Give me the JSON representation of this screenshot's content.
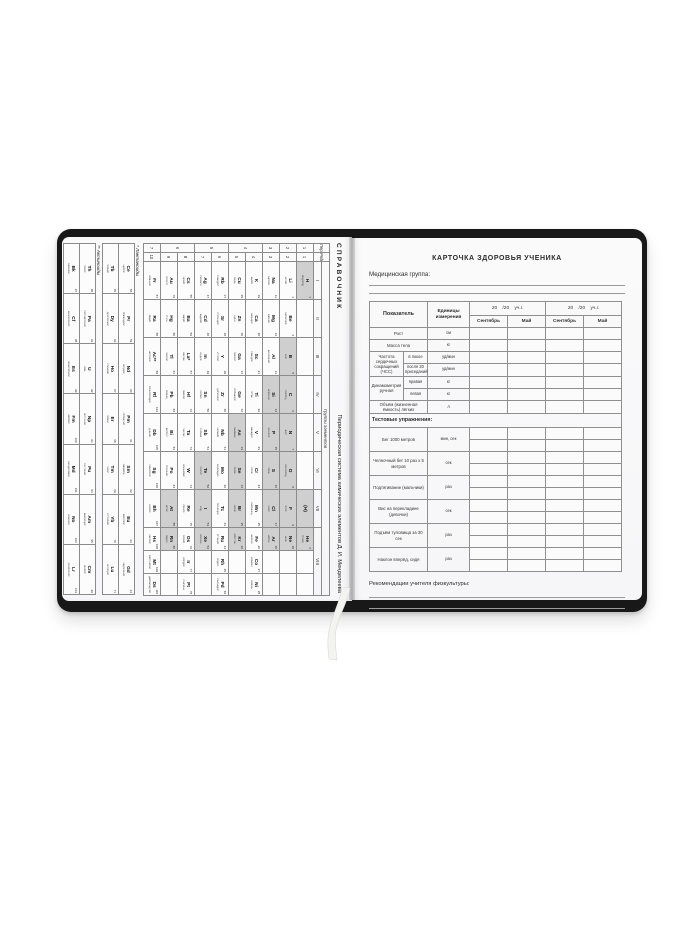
{
  "left_page": {
    "header": "СПРАВОЧНИК",
    "title": "Периодическая система химических элементов Д. И. Менделеева",
    "groups_label": "Группы элементов",
    "periods_label": "Периоды",
    "rows_label": "Ряды",
    "group_headers": [
      "I",
      "II",
      "III",
      "IV",
      "V",
      "VI",
      "VII",
      "VIII"
    ],
    "periods": [
      [
        "1",
        1
      ],
      [
        "2",
        1
      ],
      [
        "3",
        1
      ],
      [
        "4",
        2
      ],
      [
        "5",
        2
      ],
      [
        "6",
        2
      ],
      [
        "7",
        1
      ]
    ],
    "ryady": [
      {
        "r": "1",
        "g": [
          [
            1,
            "H",
            "Водород",
            1
          ],
          null,
          null,
          null,
          null,
          null,
          [
            null,
            "(H)",
            "",
            1
          ]
        ],
        "v8": [
          [
            2,
            "He",
            "Гелий",
            1
          ],
          null,
          null
        ]
      },
      {
        "r": "2",
        "g": [
          [
            3,
            "Li",
            "Литий",
            0
          ],
          [
            4,
            "Be",
            "Бериллий",
            0
          ],
          [
            5,
            "B",
            "Бор",
            1
          ],
          [
            6,
            "C",
            "Углерод",
            1
          ],
          [
            7,
            "N",
            "Азот",
            1
          ],
          [
            8,
            "O",
            "Кислород",
            1
          ],
          [
            9,
            "F",
            "Фтор",
            1
          ]
        ],
        "v8": [
          [
            10,
            "Ne",
            "Неон",
            1
          ],
          null,
          null
        ]
      },
      {
        "r": "3",
        "g": [
          [
            11,
            "Na",
            "Натрий",
            0
          ],
          [
            12,
            "Mg",
            "Магний",
            0
          ],
          [
            13,
            "Al",
            "Алюминий",
            0
          ],
          [
            14,
            "Si",
            "Кремний",
            1
          ],
          [
            15,
            "P",
            "Фосфор",
            1
          ],
          [
            16,
            "S",
            "Сера",
            1
          ],
          [
            17,
            "Cl",
            "Хлор",
            1
          ]
        ],
        "v8": [
          [
            18,
            "Ar",
            "Аргон",
            1
          ],
          null,
          null
        ]
      },
      {
        "r": "4",
        "g": [
          [
            19,
            "K",
            "Калий",
            0
          ],
          [
            20,
            "Ca",
            "Кальций",
            0
          ],
          [
            21,
            "Sc",
            "Скандий",
            0
          ],
          [
            22,
            "Ti",
            "Титан",
            0
          ],
          [
            23,
            "V",
            "Ванадий",
            0
          ],
          [
            24,
            "Cr",
            "Хром",
            0
          ],
          [
            25,
            "Mn",
            "Марганец",
            0
          ]
        ],
        "v8": [
          [
            26,
            "Fe",
            "Железо",
            0
          ],
          [
            27,
            "Co",
            "Кобальт",
            0
          ],
          [
            28,
            "Ni",
            "Никель",
            0
          ]
        ]
      },
      {
        "r": "5",
        "g": [
          [
            29,
            "Cu",
            "Медь",
            0
          ],
          [
            30,
            "Zn",
            "Цинк",
            0
          ],
          [
            31,
            "Ga",
            "Галлий",
            0
          ],
          [
            32,
            "Ge",
            "Германий",
            0
          ],
          [
            33,
            "As",
            "Мышьяк",
            1
          ],
          [
            34,
            "Se",
            "Селен",
            1
          ],
          [
            35,
            "Br",
            "Бром",
            1
          ]
        ],
        "v8": [
          [
            36,
            "Kr",
            "Криптон",
            1
          ],
          null,
          null
        ]
      },
      {
        "r": "6",
        "g": [
          [
            37,
            "Rb",
            "Рубидий",
            0
          ],
          [
            38,
            "Sr",
            "Стронций",
            0
          ],
          [
            39,
            "Y",
            "Иттрий",
            0
          ],
          [
            40,
            "Zr",
            "Цирконий",
            0
          ],
          [
            41,
            "Nb",
            "Ниобий",
            0
          ],
          [
            42,
            "Mo",
            "Молибден",
            0
          ],
          [
            43,
            "Tc",
            "Технеций",
            0
          ]
        ],
        "v8": [
          [
            44,
            "Ru",
            "Рутений",
            0
          ],
          [
            45,
            "Rh",
            "Родий",
            0
          ],
          [
            46,
            "Pd",
            "Палладий",
            0
          ]
        ]
      },
      {
        "r": "7",
        "g": [
          [
            47,
            "Ag",
            "Серебро",
            0
          ],
          [
            48,
            "Cd",
            "Кадмий",
            0
          ],
          [
            49,
            "In",
            "Индий",
            0
          ],
          [
            50,
            "Sn",
            "Олово",
            0
          ],
          [
            51,
            "Sb",
            "Сурьма",
            0
          ],
          [
            52,
            "Te",
            "Теллур",
            1
          ],
          [
            53,
            "I",
            "Иод",
            1
          ]
        ],
        "v8": [
          [
            54,
            "Xe",
            "Ксенон",
            1
          ],
          null,
          null
        ]
      },
      {
        "r": "8",
        "g": [
          [
            55,
            "Cs",
            "Цезий",
            0
          ],
          [
            56,
            "Ba",
            "Барий",
            0
          ],
          [
            57,
            "La*",
            "Лантан",
            0
          ],
          [
            72,
            "Hf",
            "Гафний",
            0
          ],
          [
            73,
            "Ta",
            "Тантал",
            0
          ],
          [
            74,
            "W",
            "Вольфрам",
            0
          ],
          [
            75,
            "Re",
            "Рений",
            0
          ]
        ],
        "v8": [
          [
            76,
            "Os",
            "Осмий",
            0
          ],
          [
            77,
            "Ir",
            "Иридий",
            0
          ],
          [
            78,
            "Pt",
            "Платина",
            0
          ]
        ]
      },
      {
        "r": "9",
        "g": [
          [
            79,
            "Au",
            "Золото",
            0
          ],
          [
            80,
            "Hg",
            "Ртуть",
            0
          ],
          [
            81,
            "Tl",
            "Таллий",
            0
          ],
          [
            82,
            "Pb",
            "Свинец",
            0
          ],
          [
            83,
            "Bi",
            "Висмут",
            0
          ],
          [
            84,
            "Po",
            "Полоний",
            0
          ],
          [
            85,
            "At",
            "Астат",
            1
          ]
        ],
        "v8": [
          [
            86,
            "Rn",
            "Радон",
            1
          ],
          null,
          null
        ]
      },
      {
        "r": "10",
        "g": [
          [
            87,
            "Fr",
            "Франций",
            0
          ],
          [
            88,
            "Ra",
            "Радий",
            0
          ],
          [
            89,
            "Ac**",
            "Актиний",
            0
          ],
          [
            104,
            "Rf",
            "Резерфордий",
            0
          ],
          [
            105,
            "Db",
            "Дубний",
            0
          ],
          [
            106,
            "Sg",
            "Сиборгий",
            0
          ],
          [
            107,
            "Bh",
            "Борий",
            0
          ]
        ],
        "v8": [
          [
            108,
            "Hs",
            "Хассий",
            0
          ],
          [
            109,
            "Mt",
            "Мейтнерий",
            0
          ],
          [
            110,
            "Ds",
            "Дармштадтий",
            0
          ]
        ]
      }
    ],
    "lanthanides_label": "* Лантаноиды",
    "lanthanides": [
      [
        [
          58,
          "Ce",
          "Церий"
        ],
        [
          59,
          "Pr",
          "Празеодим"
        ],
        [
          60,
          "Nd",
          "Неодим"
        ],
        [
          61,
          "Pm",
          "Прометий"
        ],
        [
          62,
          "Sm",
          "Самарий"
        ],
        [
          63,
          "Eu",
          "Европий"
        ],
        [
          64,
          "Gd",
          "Гадолиний"
        ]
      ],
      [
        [
          65,
          "Tb",
          "Тербий"
        ],
        [
          66,
          "Dy",
          "Диспрозий"
        ],
        [
          67,
          "Ho",
          "Гольмий"
        ],
        [
          68,
          "Er",
          "Эрбий"
        ],
        [
          69,
          "Tm",
          "Тулий"
        ],
        [
          70,
          "Yb",
          "Иттербий"
        ],
        [
          71,
          "Lu",
          "Лютеций"
        ]
      ]
    ],
    "actinides_label": "** Актиноиды",
    "actinides": [
      [
        [
          90,
          "Th",
          "Торий"
        ],
        [
          91,
          "Pa",
          "Протактиний"
        ],
        [
          92,
          "U",
          "Уран"
        ],
        [
          93,
          "Np",
          "Нептуний"
        ],
        [
          94,
          "Pu",
          "Плутоний"
        ],
        [
          95,
          "Am",
          "Америций"
        ],
        [
          96,
          "Cm",
          "Кюрий"
        ]
      ],
      [
        [
          97,
          "Bk",
          "Берклий"
        ],
        [
          98,
          "Cf",
          "Калифорний"
        ],
        [
          99,
          "Es",
          "Эйнштейний"
        ],
        [
          100,
          "Fm",
          "Фермий"
        ],
        [
          101,
          "Md",
          "Менделевий"
        ],
        [
          102,
          "No",
          "Нобелий"
        ],
        [
          103,
          "Lr",
          "Лоуренсий"
        ]
      ]
    ]
  },
  "right_page": {
    "title": "КАРТОЧКА ЗДОРОВЬЯ УЧЕНИКА",
    "medical_group_label": "Медицинская группа:",
    "table": {
      "col_indicator": "Показатель",
      "col_units": "Единицы измерения",
      "year_header": "20    /20    уч.г.",
      "col_september": "Сентябрь",
      "col_may": "Май",
      "rows": [
        {
          "t": "simple",
          "label": "Рост",
          "unit": "см"
        },
        {
          "t": "simple",
          "label": "Масса тела",
          "unit": "кг"
        },
        {
          "t": "nested",
          "label": "Частота сердечных сокращений (ЧСС)",
          "subs": [
            {
              "label": "в покое",
              "unit": "уд/мин"
            },
            {
              "label": "после 20 приседаний",
              "unit": "уд/мин"
            }
          ]
        },
        {
          "t": "nested",
          "label": "Динамометрия ручная",
          "subs": [
            {
              "label": "правая",
              "unit": "кг"
            },
            {
              "label": "левая",
              "unit": "кг"
            }
          ]
        },
        {
          "t": "simple",
          "label": "Объём (жизненная ёмкость) лёгких",
          "unit": "л"
        },
        {
          "t": "section",
          "label": "Тестовые упражнения:"
        },
        {
          "t": "double",
          "label": "Бег 1000 метров",
          "unit": "мин, сек"
        },
        {
          "t": "double",
          "label": "Челночный бег 10 раз х 5 метров",
          "unit": "сек"
        },
        {
          "t": "double",
          "label": "Подтягивание (мальчики)",
          "unit": "раз"
        },
        {
          "t": "double",
          "label": "Вис на перекладине (девочки)",
          "unit": "сек"
        },
        {
          "t": "double",
          "label": "Подъём туловища за 30 сек",
          "unit": "раз"
        },
        {
          "t": "double",
          "label": "Наклон вперёд, сидя",
          "unit": "раз"
        }
      ]
    },
    "recommendations_label": "Рекомендации учителя физкультуры:"
  },
  "colors": {
    "cover": "#181818",
    "page": "#f8f8f9",
    "grid_line": "#8b8b8b",
    "shaded_cell": "#cfcfcf",
    "ribbon": "#f3f3f1"
  }
}
